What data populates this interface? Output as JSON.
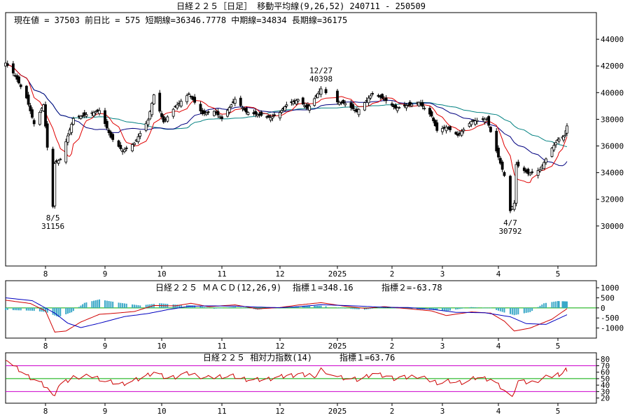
{
  "header": {
    "title": "日経２２５［日足］ 移動平均線(9,26,52)  240711 - 250509",
    "info": "現在値 = 37503  前日比 = 575   短期線=36346.7778   中期線=34834   長期線=36175"
  },
  "colors": {
    "up": "#ffffff",
    "down": "#000000",
    "short_ma": "#e00000",
    "mid_ma": "#000080",
    "long_ma": "#008080",
    "macd": "#d00000",
    "signal": "#0000c0",
    "hist": "#3aa8c8",
    "rsi": "#cc0000",
    "rsi_high": "#cc00cc",
    "rsi_mid": "#00aa00",
    "rsi_low": "#cc00cc"
  },
  "chart_data": [
    {
      "type": "candlestick",
      "title": "日経２２５［日足］ 移動平均線(9,26,52)  240711 - 250509",
      "ylim": [
        27000,
        46000
      ],
      "y_ticks": [
        "44000",
        "42000",
        "40000",
        "38000",
        "36000",
        "34000",
        "32000",
        "30000"
      ],
      "y_tick_values": [
        44000,
        42000,
        40000,
        38000,
        36000,
        34000,
        32000,
        30000
      ],
      "x_ticks": [
        "8",
        "9",
        "10",
        "11",
        "12",
        "2025",
        "2",
        "3",
        "4",
        "5"
      ],
      "annotations": [
        {
          "date": "8/5",
          "value": "31156",
          "label_date": "8/5",
          "label_value": "31156"
        },
        {
          "date": "12/27",
          "value": "40398",
          "label_date": "12/27",
          "label_value": "40398"
        },
        {
          "date": "4/7",
          "value": "30792",
          "label_date": "4/7",
          "label_value": "30792"
        }
      ],
      "ma_legend": {
        "short": "9",
        "mid": "26",
        "long": "52"
      },
      "close_keypoints": [
        [
          "07-11",
          42220
        ],
        [
          "07-16",
          41280
        ],
        [
          "07-22",
          39600
        ],
        [
          "07-26",
          37660
        ],
        [
          "07-31",
          39100
        ],
        [
          "08-02",
          35900
        ],
        [
          "08-05",
          31460
        ],
        [
          "08-06",
          34680
        ],
        [
          "08-09",
          35020
        ],
        [
          "08-16",
          38060
        ],
        [
          "08-23",
          38360
        ],
        [
          "08-30",
          38650
        ],
        [
          "09-05",
          36650
        ],
        [
          "09-11",
          35620
        ],
        [
          "09-17",
          36200
        ],
        [
          "09-24",
          37940
        ],
        [
          "09-27",
          39830
        ],
        [
          "10-02",
          37800
        ],
        [
          "10-08",
          38940
        ],
        [
          "10-15",
          39910
        ],
        [
          "10-22",
          38410
        ],
        [
          "10-28",
          38600
        ],
        [
          "11-01",
          38050
        ],
        [
          "11-08",
          39500
        ],
        [
          "11-14",
          38540
        ],
        [
          "11-20",
          38350
        ],
        [
          "11-27",
          38130
        ],
        [
          "12-02",
          38510
        ],
        [
          "12-06",
          39090
        ],
        [
          "12-13",
          39470
        ],
        [
          "12-19",
          38810
        ],
        [
          "12-27",
          40280
        ],
        [
          "01-06",
          39300
        ],
        [
          "01-10",
          39190
        ],
        [
          "01-16",
          38570
        ],
        [
          "01-24",
          39930
        ],
        [
          "01-30",
          39510
        ],
        [
          "02-05",
          38830
        ],
        [
          "02-12",
          39060
        ],
        [
          "02-18",
          39270
        ],
        [
          "02-25",
          38240
        ],
        [
          "02-28",
          37160
        ],
        [
          "03-05",
          37420
        ],
        [
          "03-11",
          36790
        ],
        [
          "03-18",
          37840
        ],
        [
          "03-26",
          38030
        ],
        [
          "03-31",
          35620
        ],
        [
          "04-04",
          33780
        ],
        [
          "04-07",
          31140
        ],
        [
          "04-09",
          31710
        ],
        [
          "04-10",
          34610
        ],
        [
          "04-16",
          33920
        ],
        [
          "04-22",
          34220
        ],
        [
          "04-28",
          35840
        ],
        [
          "05-01",
          36450
        ],
        [
          "05-07",
          36780
        ],
        [
          "05-09",
          37503
        ]
      ]
    },
    {
      "type": "line",
      "title": "日経２２５   ＭＡＣＤ(12,26,9)",
      "indicator1_label": "指標１=348.16",
      "indicator2_label": "指標２=-63.78",
      "ylim": [
        -1500,
        1350
      ],
      "y_ticks": [
        "1000",
        "500",
        "0",
        "-500",
        "-1000"
      ],
      "y_tick_values": [
        1000,
        500,
        0,
        -500,
        -1000
      ],
      "x_ticks": [
        "8",
        "9",
        "10",
        "11",
        "12",
        "2025",
        "2",
        "3",
        "4",
        "5"
      ],
      "series": [
        {
          "key": "macd",
          "keypoints": [
            [
              "07-11",
              380
            ],
            [
              "07-24",
              220
            ],
            [
              "08-01",
              -150
            ],
            [
              "08-06",
              -1200
            ],
            [
              "08-12",
              -1150
            ],
            [
              "08-20",
              -700
            ],
            [
              "08-30",
              -320
            ],
            [
              "09-09",
              -250
            ],
            [
              "09-17",
              -180
            ],
            [
              "09-27",
              120
            ],
            [
              "10-08",
              100
            ],
            [
              "10-16",
              230
            ],
            [
              "10-25",
              60
            ],
            [
              "11-08",
              150
            ],
            [
              "11-20",
              -50
            ],
            [
              "12-02",
              20
            ],
            [
              "12-13",
              140
            ],
            [
              "12-27",
              260
            ],
            [
              "01-10",
              80
            ],
            [
              "01-20",
              -20
            ],
            [
              "01-30",
              60
            ],
            [
              "02-12",
              -40
            ],
            [
              "02-25",
              -150
            ],
            [
              "03-05",
              -380
            ],
            [
              "03-18",
              -200
            ],
            [
              "03-28",
              -260
            ],
            [
              "04-04",
              -660
            ],
            [
              "04-09",
              -1150
            ],
            [
              "04-17",
              -1000
            ],
            [
              "04-28",
              -560
            ],
            [
              "05-09",
              -40
            ]
          ]
        },
        {
          "key": "signal",
          "keypoints": [
            [
              "07-11",
              500
            ],
            [
              "07-25",
              360
            ],
            [
              "08-06",
              -260
            ],
            [
              "08-13",
              -760
            ],
            [
              "08-20",
              -980
            ],
            [
              "08-30",
              -760
            ],
            [
              "09-12",
              -430
            ],
            [
              "09-24",
              -280
            ],
            [
              "10-04",
              -90
            ],
            [
              "10-15",
              80
            ],
            [
              "10-25",
              100
            ],
            [
              "11-08",
              90
            ],
            [
              "11-20",
              40
            ],
            [
              "12-02",
              10
            ],
            [
              "12-13",
              60
            ],
            [
              "12-27",
              160
            ],
            [
              "01-15",
              100
            ],
            [
              "01-30",
              30
            ],
            [
              "02-12",
              20
            ],
            [
              "02-25",
              -70
            ],
            [
              "03-10",
              -220
            ],
            [
              "03-25",
              -240
            ],
            [
              "04-07",
              -440
            ],
            [
              "04-15",
              -780
            ],
            [
              "04-25",
              -820
            ],
            [
              "05-09",
              -340
            ]
          ]
        }
      ],
      "histogram_keypoints": [
        [
          "07-11",
          -100
        ],
        [
          "07-25",
          -140
        ],
        [
          "08-01",
          -200
        ],
        [
          "08-08",
          -450
        ],
        [
          "08-15",
          -220
        ],
        [
          "08-22",
          250
        ],
        [
          "08-30",
          420
        ],
        [
          "09-09",
          260
        ],
        [
          "09-20",
          120
        ],
        [
          "09-30",
          230
        ],
        [
          "10-10",
          150
        ],
        [
          "10-18",
          120
        ],
        [
          "10-28",
          -40
        ],
        [
          "11-08",
          60
        ],
        [
          "11-20",
          -80
        ],
        [
          "12-02",
          20
        ],
        [
          "12-13",
          80
        ],
        [
          "12-27",
          110
        ],
        [
          "01-10",
          -30
        ],
        [
          "01-20",
          -90
        ],
        [
          "01-30",
          40
        ],
        [
          "02-12",
          -50
        ],
        [
          "02-25",
          -90
        ],
        [
          "03-05",
          -160
        ],
        [
          "03-18",
          40
        ],
        [
          "03-28",
          -20
        ],
        [
          "04-04",
          -230
        ],
        [
          "04-09",
          -360
        ],
        [
          "04-17",
          -210
        ],
        [
          "04-24",
          230
        ],
        [
          "05-01",
          340
        ],
        [
          "05-09",
          320
        ]
      ]
    },
    {
      "type": "line",
      "title": "日経２２５   相対力指数(14)",
      "indicator1_label": "指標１=63.76",
      "ylim": [
        12,
        90
      ],
      "y_ticks": [
        "80",
        "70",
        "60",
        "50",
        "40",
        "30",
        "20"
      ],
      "y_tick_values": [
        80,
        70,
        60,
        50,
        40,
        30,
        20
      ],
      "reference_lines": [
        70,
        50,
        30
      ],
      "x_ticks": [
        "8",
        "9",
        "10",
        "11",
        "12",
        "2025",
        "2",
        "3",
        "4",
        "5"
      ],
      "series": [
        {
          "key": "rsi",
          "keypoints": [
            [
              "07-11",
              82
            ],
            [
              "07-15",
              70
            ],
            [
              "07-22",
              55
            ],
            [
              "07-30",
              42
            ],
            [
              "08-02",
              35
            ],
            [
              "08-05",
              22
            ],
            [
              "08-08",
              38
            ],
            [
              "08-16",
              52
            ],
            [
              "08-26",
              54
            ],
            [
              "09-04",
              45
            ],
            [
              "09-11",
              42
            ],
            [
              "09-19",
              49
            ],
            [
              "09-27",
              60
            ],
            [
              "10-04",
              50
            ],
            [
              "10-15",
              58
            ],
            [
              "10-24",
              51
            ],
            [
              "11-05",
              55
            ],
            [
              "11-14",
              49
            ],
            [
              "11-22",
              48
            ],
            [
              "12-03",
              53
            ],
            [
              "12-12",
              56
            ],
            [
              "12-24",
              55
            ],
            [
              "12-27",
              63
            ],
            [
              "01-08",
              52
            ],
            [
              "01-17",
              48
            ],
            [
              "01-24",
              58
            ],
            [
              "02-05",
              50
            ],
            [
              "02-17",
              54
            ],
            [
              "02-28",
              44
            ],
            [
              "03-07",
              46
            ],
            [
              "03-14",
              44
            ],
            [
              "03-21",
              52
            ],
            [
              "03-28",
              49
            ],
            [
              "04-02",
              37
            ],
            [
              "04-07",
              22
            ],
            [
              "04-09",
              30
            ],
            [
              "04-11",
              45
            ],
            [
              "04-18",
              44
            ],
            [
              "04-25",
              52
            ],
            [
              "05-02",
              57
            ],
            [
              "05-09",
              63.76
            ]
          ]
        }
      ]
    }
  ]
}
